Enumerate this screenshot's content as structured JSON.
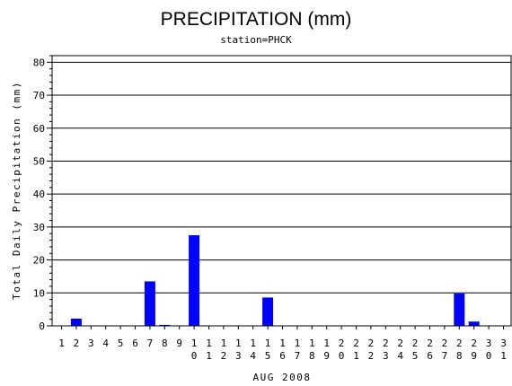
{
  "chart_data": {
    "type": "bar",
    "title": "PRECIPITATION (mm)",
    "subtitle": "station=PHCK",
    "xlabel": "AUG 2008",
    "ylabel": "Total Daily Precipitation (mm)",
    "ylim": [
      0,
      82
    ],
    "yticks": [
      0,
      10,
      20,
      30,
      40,
      50,
      60,
      70,
      80
    ],
    "grid": true,
    "categories": [
      "1",
      "2",
      "3",
      "4",
      "5",
      "6",
      "7",
      "8",
      "9",
      "10",
      "11",
      "12",
      "13",
      "14",
      "15",
      "16",
      "17",
      "18",
      "19",
      "20",
      "21",
      "22",
      "23",
      "24",
      "25",
      "26",
      "27",
      "28",
      "29",
      "30",
      "31"
    ],
    "values": [
      0,
      2.2,
      0,
      0,
      0,
      0,
      13.5,
      0.3,
      0,
      27.5,
      0,
      0,
      0,
      0,
      8.6,
      0,
      0,
      0,
      0,
      0,
      0,
      0,
      0,
      0,
      0,
      0,
      0,
      9.8,
      1.3,
      0,
      0
    ],
    "bar_color": "#0000ff"
  }
}
